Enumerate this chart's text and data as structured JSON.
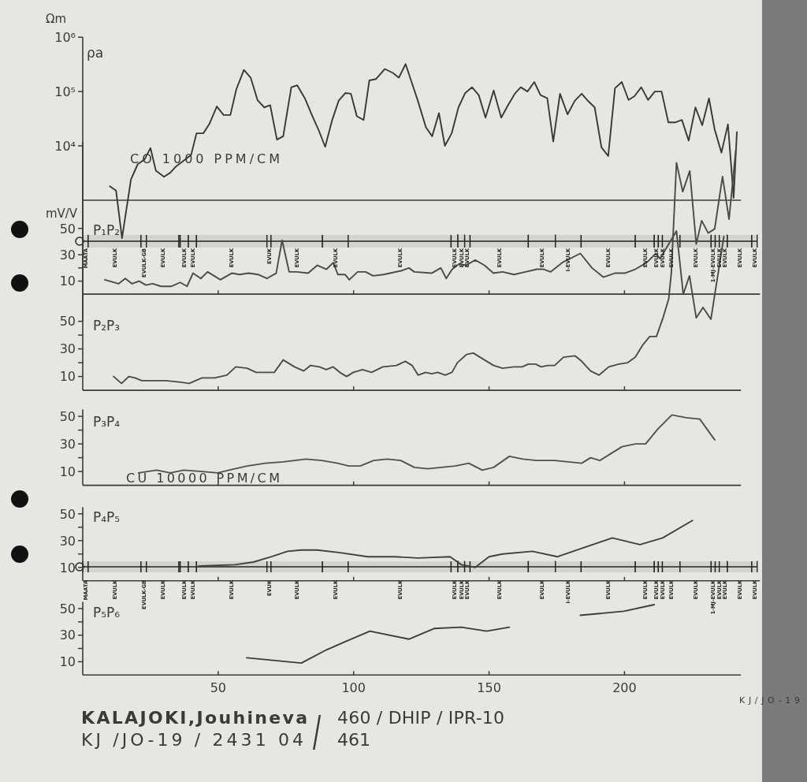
{
  "chart_data": [
    {
      "type": "line",
      "title": "ρa",
      "ylabel": "Ωm",
      "log": true,
      "xlim": [
        0,
        243
      ],
      "ylim": [
        150,
        1000000
      ],
      "yticks": [
        {
          "value": 10000,
          "label": "10⁴"
        },
        {
          "value": 100000,
          "label": "10⁵"
        },
        {
          "value": 1000000,
          "label": "10⁶"
        }
      ],
      "tick_labels": "y",
      "ref_lines": [
        {
          "axis": "y",
          "value": 1000
        }
      ],
      "annotations": [
        "CO 1000 PPM/CM"
      ],
      "color": "#383838",
      "x": [
        10,
        12.3,
        14.5,
        17.8,
        20.3,
        22.8,
        25,
        27,
        30,
        32.3,
        34.5,
        37,
        40,
        42,
        44.5,
        46.7,
        49.5,
        52,
        54.5,
        56.7,
        59.5,
        62,
        64.5,
        67,
        69.2,
        71.7,
        74,
        77,
        79.2,
        82,
        84.5,
        87,
        89.5,
        92,
        94.5,
        97,
        99,
        101.2,
        103.7,
        105.8,
        108.3,
        111.5,
        114.5,
        116.7,
        119.2,
        121.2,
        123.7,
        126.7,
        129,
        131.5,
        133.7,
        136.2,
        138.7,
        141.2,
        143.7,
        146.2,
        148.7,
        151.7,
        154.5,
        157,
        159.5,
        161.7,
        164.2,
        166.7,
        169,
        171.5,
        173.7,
        176.2,
        179,
        181.7,
        184.2,
        186.7,
        189,
        191.5,
        194,
        196.5,
        199,
        201.5,
        203.7,
        206.2,
        208.7,
        211.2,
        213.7,
        216.2,
        218.7,
        221.2,
        223.7,
        226.2,
        228.7,
        231.2,
        233.3,
        235.8,
        238.2,
        240.3,
        241.5
      ],
      "values": [
        1800,
        1500,
        200,
        2400,
        4600,
        5600,
        9100,
        3500,
        2700,
        3200,
        4200,
        5200,
        6800,
        17000,
        17000,
        25000,
        53000,
        37000,
        37000,
        110000,
        250000,
        180000,
        70000,
        51000,
        56000,
        13000,
        15000,
        120000,
        130000,
        75000,
        38000,
        20000,
        9600,
        29000,
        68000,
        94000,
        91000,
        35000,
        30000,
        160000,
        170000,
        260000,
        220000,
        180000,
        320000,
        160000,
        68000,
        22000,
        15000,
        40000,
        10000,
        17000,
        51000,
        94000,
        120000,
        86000,
        33000,
        105000,
        33000,
        56000,
        91000,
        120000,
        100000,
        150000,
        86000,
        75000,
        12000,
        91000,
        38000,
        68000,
        91000,
        66000,
        51000,
        9400,
        6500,
        115000,
        150000,
        70000,
        82000,
        120000,
        70000,
        100000,
        100000,
        27000,
        27000,
        30000,
        12500,
        51000,
        24000,
        75000,
        20000,
        7500,
        25000,
        1100,
        18000
      ]
    },
    {
      "type": "line",
      "title": "P₁P₂",
      "ylabel": "mV/V",
      "xlim": [
        0,
        250
      ],
      "ylim": [
        -20,
        55
      ],
      "yticks": [
        10,
        {
          "value": 20,
          "label": null
        },
        30,
        50
      ],
      "xticks": [
        50,
        100,
        150,
        200
      ],
      "tick_labels": "y",
      "ref_lines": [
        {
          "axis": "y",
          "value": 0
        }
      ],
      "color": "#4a4a4a",
      "bands": [
        {
          "axis": "x",
          "from": 0,
          "to": 2,
          "label": "MAATA"
        },
        {
          "axis": "x",
          "from": 2,
          "to": 21.5,
          "label": "EVULK"
        },
        {
          "axis": "x",
          "from": 21.5,
          "to": 23.5,
          "label": "EVULK-GB"
        },
        {
          "axis": "x",
          "from": 23.5,
          "to": 35.5,
          "label": "EVULK"
        },
        {
          "axis": "x",
          "from": 35.5,
          "to": 36,
          "label": null
        },
        {
          "axis": "x",
          "from": 36,
          "to": 39,
          "label": "EVULK"
        },
        {
          "axis": "x",
          "from": 39,
          "to": 42,
          "label": "EVULK"
        },
        {
          "axis": "x",
          "from": 42,
          "to": 68,
          "label": "EVULK"
        },
        {
          "axis": "x",
          "from": 68,
          "to": 69.5,
          "label": "EVUK"
        },
        {
          "axis": "x",
          "from": 69.5,
          "to": 88.5,
          "label": "EVULK"
        },
        {
          "axis": "x",
          "from": 88.5,
          "to": 98,
          "label": "EVULK"
        },
        {
          "axis": "x",
          "from": 98,
          "to": 136,
          "label": "EVULK"
        },
        {
          "axis": "x",
          "from": 136,
          "to": 138.5,
          "label": "EVULK"
        },
        {
          "axis": "x",
          "from": 138.5,
          "to": 141,
          "label": "EVULK"
        },
        {
          "axis": "x",
          "from": 141,
          "to": 143,
          "label": "EVULK"
        },
        {
          "axis": "x",
          "from": 143,
          "to": 164.5,
          "label": "EVULK"
        },
        {
          "axis": "x",
          "from": 164.5,
          "to": 174.5,
          "label": "EVULK"
        },
        {
          "axis": "x",
          "from": 174.5,
          "to": 184,
          "label": "I-EVULK"
        },
        {
          "axis": "x",
          "from": 184,
          "to": 204,
          "label": "EVULK"
        },
        {
          "axis": "x",
          "from": 204,
          "to": 211,
          "label": "EVULK"
        },
        {
          "axis": "x",
          "from": 211,
          "to": 212.5,
          "label": "EVULK"
        },
        {
          "axis": "x",
          "from": 212.5,
          "to": 214,
          "label": "EVULK"
        },
        {
          "axis": "x",
          "from": 214,
          "to": 220.5,
          "label": "EVULK"
        },
        {
          "axis": "x",
          "from": 220.5,
          "to": 232,
          "label": "EVULK"
        },
        {
          "axis": "x",
          "from": 232,
          "to": 233.5,
          "label": "1-MJ-EVULK"
        },
        {
          "axis": "x",
          "from": 233.5,
          "to": 235,
          "label": "EVULK"
        },
        {
          "axis": "x",
          "from": 235,
          "to": 238,
          "label": "EVULK"
        },
        {
          "axis": "x",
          "from": 238,
          "to": 247,
          "label": "EVULK"
        },
        {
          "axis": "x",
          "from": 247,
          "to": 249,
          "label": "EVULK"
        }
      ],
      "x": [
        8.1,
        13.2,
        15.7,
        18.2,
        20.8,
        23.3,
        25.8,
        28.9,
        32.6,
        36,
        38.5,
        40.7,
        43.6,
        46.1,
        50.8,
        55,
        57.9,
        61.3,
        64.7,
        68,
        71.4,
        73.6,
        76.2,
        79,
        83.2,
        86.6,
        90,
        92.5,
        94.2,
        96.8,
        98.4,
        101.5,
        104.4,
        107.2,
        111.1,
        117.9,
        120.4,
        122.4,
        128.8,
        132.2,
        134.2,
        136.4,
        139,
        141.5,
        144.9,
        148.3,
        151.6,
        155,
        159.2,
        163.5,
        167.7,
        170.2,
        172.7,
        177,
        183.7,
        188,
        192.2,
        196.4,
        200.1,
        204,
        208.2,
        211.6,
        213.1,
        219.2,
        221.7,
        224,
        226.5,
        229,
        231.9,
        236.7
      ],
      "values": [
        11,
        8,
        12,
        8,
        10,
        7,
        8,
        6,
        6,
        9,
        6,
        16,
        12,
        17,
        11,
        16,
        15,
        16,
        15,
        12,
        16,
        41,
        17,
        17,
        16,
        22,
        19,
        24,
        15,
        15,
        11,
        17,
        17,
        14,
        15,
        18,
        20,
        17,
        16,
        20,
        12,
        19,
        23,
        22,
        26,
        22,
        16,
        17,
        15,
        17,
        19,
        19,
        17,
        24,
        31,
        20,
        13,
        16,
        16,
        19,
        24,
        31,
        27,
        48,
        0,
        14,
        -18,
        -10,
        -19,
        44
      ]
    },
    {
      "type": "line",
      "title": "P₂P₃",
      "xlim": [
        0,
        243
      ],
      "ylim": [
        0,
        180
      ],
      "yticks": [
        10,
        {
          "value": 20,
          "label": null
        },
        30,
        {
          "value": 40,
          "label": null
        },
        50
      ],
      "xticks": [
        50,
        100,
        150,
        200
      ],
      "tick_labels": "y",
      "color": "#4a4a4a",
      "x": [
        11.4,
        14.3,
        17,
        19.3,
        21.8,
        26.5,
        30.6,
        35.6,
        39.3,
        44,
        48.7,
        53.2,
        56.5,
        60.7,
        64,
        67.4,
        70.7,
        74,
        78.2,
        81.6,
        84.1,
        87.4,
        89.9,
        92.4,
        94.9,
        97.4,
        99.9,
        103.3,
        106.6,
        110.8,
        115.8,
        119.1,
        121.6,
        123.8,
        126.6,
        128.8,
        131.1,
        133.8,
        136.3,
        138.3,
        141.7,
        144.2,
        147.5,
        151.7,
        155,
        159.2,
        162.2,
        164.5,
        167.2,
        169.2,
        171.7,
        174.2,
        177.5,
        181.7,
        184.2,
        187.5,
        190.6,
        194.2,
        197.9,
        201.2,
        204,
        206.8,
        209.3,
        211.8,
        214.3,
        216.3,
        217.3,
        219.2,
        221.5,
        224.1,
        226.5,
        228.5,
        230.9,
        233.3,
        236.2,
        238.6,
        241.1
      ],
      "values": [
        10,
        5,
        10,
        9,
        7,
        7,
        7,
        6,
        5,
        9,
        9,
        11,
        17,
        16,
        13,
        13,
        13,
        22,
        17,
        14,
        18,
        17,
        15,
        17,
        13,
        10,
        13,
        15,
        13,
        17,
        18,
        21,
        18,
        11,
        13,
        12,
        13,
        11,
        13,
        20,
        26,
        27,
        23,
        18,
        16,
        17,
        17,
        19,
        19,
        17,
        18,
        18,
        24,
        25,
        21,
        14,
        11,
        17,
        19,
        20,
        24,
        33,
        39,
        39,
        53,
        66,
        85,
        165,
        144,
        159,
        106,
        123,
        114,
        117,
        155,
        124,
        174
      ]
    },
    {
      "type": "line",
      "title": "P₃P₄",
      "xlim": [
        0,
        243
      ],
      "ylim": [
        0,
        55
      ],
      "yticks": [
        10,
        {
          "value": 20,
          "label": null
        },
        30,
        {
          "value": 40,
          "label": null
        },
        50
      ],
      "xticks": [
        50,
        100,
        150,
        200
      ],
      "tick_labels": "y",
      "annotations": [
        "CU 10000 PPM/CM"
      ],
      "color": "#505050",
      "x": [
        20.6,
        27.3,
        32.3,
        37.3,
        44,
        49.8,
        54,
        60.7,
        67.4,
        74,
        82.4,
        88.2,
        94.1,
        98.2,
        102.4,
        107.4,
        112.4,
        117.4,
        122.4,
        127.4,
        132.4,
        137.5,
        142.5,
        147.5,
        151.7,
        157.5,
        162.5,
        167.5,
        174.2,
        179.2,
        184.2,
        187.5,
        190.9,
        195,
        199.1,
        204.1,
        207.8,
        212.4,
        217.5,
        222.8,
        227.8,
        233.3
      ],
      "values": [
        9,
        11,
        9,
        11,
        10,
        9,
        11,
        14,
        16,
        17,
        19,
        18,
        16,
        14,
        14,
        18,
        19,
        18,
        13,
        12,
        13,
        14,
        16,
        11,
        13,
        21,
        19,
        18,
        18,
        17,
        16,
        20,
        18,
        23,
        28,
        30,
        30,
        41,
        51,
        49,
        48,
        33
      ]
    },
    {
      "type": "line",
      "title": "P₄P₅",
      "xlim": [
        0,
        250
      ],
      "ylim": [
        0,
        55
      ],
      "yticks": [
        10,
        {
          "value": 20,
          "label": null
        },
        30,
        {
          "value": 40,
          "label": null
        },
        50
      ],
      "xticks": [
        50,
        100,
        150,
        200
      ],
      "tick_labels": "y",
      "color": "#404040",
      "bands": [
        {
          "axis": "x",
          "from": 0,
          "to": 2,
          "label": "MAATA"
        },
        {
          "axis": "x",
          "from": 2,
          "to": 21.5,
          "label": "EVULK"
        },
        {
          "axis": "x",
          "from": 21.5,
          "to": 23.5,
          "label": "EVULK-GB"
        },
        {
          "axis": "x",
          "from": 23.5,
          "to": 35.5,
          "label": "EVULK"
        },
        {
          "axis": "x",
          "from": 35.5,
          "to": 36,
          "label": null
        },
        {
          "axis": "x",
          "from": 36,
          "to": 39,
          "label": "EVULK"
        },
        {
          "axis": "x",
          "from": 39,
          "to": 42,
          "label": "EVULK"
        },
        {
          "axis": "x",
          "from": 42,
          "to": 68,
          "label": "EVULK"
        },
        {
          "axis": "x",
          "from": 68,
          "to": 69.5,
          "label": "EVUK"
        },
        {
          "axis": "x",
          "from": 69.5,
          "to": 88.5,
          "label": "EVULK"
        },
        {
          "axis": "x",
          "from": 88.5,
          "to": 98,
          "label": "EVULK"
        },
        {
          "axis": "x",
          "from": 98,
          "to": 136,
          "label": "EVULK"
        },
        {
          "axis": "x",
          "from": 136,
          "to": 138.5,
          "label": "EVULK"
        },
        {
          "axis": "x",
          "from": 138.5,
          "to": 141,
          "label": "EVULK"
        },
        {
          "axis": "x",
          "from": 141,
          "to": 143,
          "label": "EVULK"
        },
        {
          "axis": "x",
          "from": 143,
          "to": 164.5,
          "label": "EVULK"
        },
        {
          "axis": "x",
          "from": 164.5,
          "to": 174.5,
          "label": "EVULK"
        },
        {
          "axis": "x",
          "from": 174.5,
          "to": 184,
          "label": "I-EVULK"
        },
        {
          "axis": "x",
          "from": 184,
          "to": 204,
          "label": "EVULK"
        },
        {
          "axis": "x",
          "from": 204,
          "to": 211,
          "label": "EVULK"
        },
        {
          "axis": "x",
          "from": 211,
          "to": 212.5,
          "label": "EVULK"
        },
        {
          "axis": "x",
          "from": 212.5,
          "to": 214,
          "label": "EVULK"
        },
        {
          "axis": "x",
          "from": 214,
          "to": 220.5,
          "label": "EVULK"
        },
        {
          "axis": "x",
          "from": 220.5,
          "to": 232,
          "label": "EVULK"
        },
        {
          "axis": "x",
          "from": 232,
          "to": 233.5,
          "label": "1-MJ-EVULK"
        },
        {
          "axis": "x",
          "from": 233.5,
          "to": 235,
          "label": "EVULK"
        },
        {
          "axis": "x",
          "from": 235,
          "to": 238,
          "label": "EVULK"
        },
        {
          "axis": "x",
          "from": 238,
          "to": 247,
          "label": "EVULK"
        },
        {
          "axis": "x",
          "from": 247,
          "to": 249,
          "label": "EVULK"
        }
      ],
      "x": [
        42.7,
        56.2,
        63,
        69.7,
        75.6,
        80.7,
        86.6,
        95.1,
        105.2,
        115.3,
        123.8,
        135.6,
        139.8,
        144.9,
        150,
        155,
        166,
        175.3,
        195.5,
        205.7,
        214.1,
        225.1
      ],
      "values": [
        11,
        12,
        14,
        18,
        22,
        23,
        23,
        21,
        18,
        18,
        17,
        18,
        12,
        10,
        18,
        20,
        22,
        18,
        32,
        27,
        32,
        45
      ]
    },
    {
      "type": "line",
      "title": "P₅P₆",
      "xlim": [
        0,
        243
      ],
      "ylim": [
        0,
        55
      ],
      "yticks": [
        10,
        {
          "value": 20,
          "label": null
        },
        30,
        {
          "value": 40,
          "label": null
        },
        50
      ],
      "xticks": [
        50,
        100,
        150,
        200
      ],
      "color": "#3c3c3c",
      "annotations": [
        "KALAJOKI,Jouhineva",
        "KJ /JO-19 / 2431 04",
        "/",
        "460 / DHIP / IPR-10",
        "461",
        "KJ/JO-19"
      ],
      "x": [
        60.5,
        80.7,
        90,
        96.8,
        106,
        120.4,
        129.7,
        139.8,
        149.1,
        157.5,
        170,
        183.7,
        199.8,
        211
      ],
      "values": [
        13,
        9,
        19,
        25,
        33,
        27,
        35,
        36,
        33,
        36,
        null,
        45,
        48,
        53
      ]
    }
  ]
}
